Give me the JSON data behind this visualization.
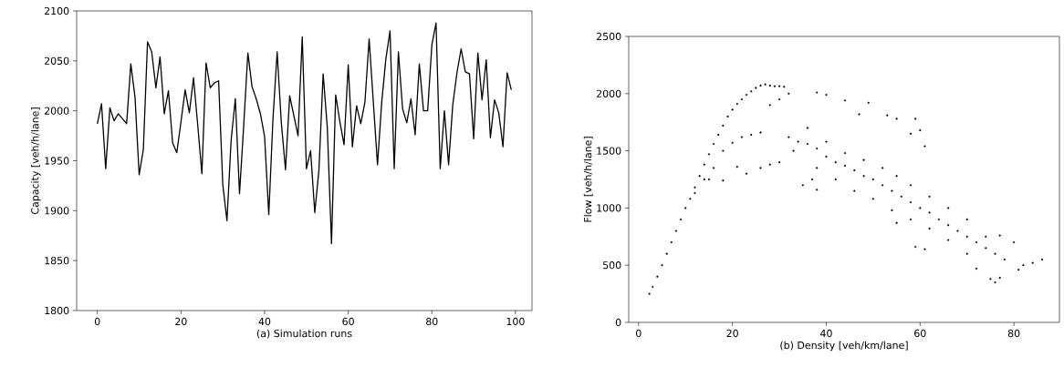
{
  "chart_data": [
    {
      "type": "line",
      "xlabel": "(a) Simulation runs",
      "ylabel": "Capacity [veh/h/lane]",
      "color": "#000000",
      "x": [
        0,
        1,
        2,
        3,
        4,
        5,
        6,
        7,
        8,
        9,
        10,
        11,
        12,
        13,
        14,
        15,
        16,
        17,
        18,
        19,
        20,
        21,
        22,
        23,
        24,
        25,
        26,
        27,
        28,
        29,
        30,
        31,
        32,
        33,
        34,
        35,
        36,
        37,
        38,
        39,
        40,
        41,
        42,
        43,
        44,
        45,
        46,
        47,
        48,
        49,
        50,
        51,
        52,
        53,
        54,
        55,
        56,
        57,
        58,
        59,
        60,
        61,
        62,
        63,
        64,
        65,
        66,
        67,
        68,
        69,
        70,
        71,
        72,
        73,
        74,
        75,
        76,
        77,
        78,
        79,
        80,
        81,
        82,
        83,
        84,
        85,
        86,
        87,
        88,
        89,
        90,
        91,
        92,
        93,
        94,
        95,
        96,
        97,
        98,
        99
      ],
      "values": [
        1987,
        2007,
        1942,
        2003,
        1990,
        1997,
        1992,
        1987,
        2047,
        2014,
        1936,
        1961,
        2069,
        2059,
        2023,
        2054,
        1997,
        2020,
        1968,
        1958,
        1989,
        2021,
        1998,
        2033,
        1986,
        1937,
        2048,
        2023,
        2028,
        2030,
        1926,
        1890,
        1971,
        2012,
        1917,
        1985,
        2058,
        2024,
        2012,
        1997,
        1974,
        1896,
        1992,
        2059,
        1988,
        1941,
        2015,
        1995,
        1975,
        2074,
        1942,
        1960,
        1898,
        1941,
        2037,
        1983,
        1867,
        2016,
        1989,
        1966,
        2046,
        1964,
        2005,
        1987,
        2009,
        2072,
        2009,
        1946,
        2008,
        2052,
        2080,
        1942,
        2059,
        2002,
        1988,
        2012,
        1976,
        2047,
        2000,
        2000,
        2066,
        2088,
        1942,
        2000,
        1946,
        2006,
        2038,
        2062,
        2039,
        2037,
        1972,
        2058,
        2011,
        2051,
        1973,
        2011,
        1998,
        1964,
        2038,
        2021
      ],
      "xlim": [
        -4.95,
        103.95
      ],
      "xticks": [
        0,
        20,
        40,
        60,
        80,
        100
      ],
      "ylim": [
        1800,
        2100
      ],
      "yticks": [
        1800,
        1850,
        1900,
        1950,
        2000,
        2050,
        2100
      ]
    },
    {
      "type": "scatter",
      "xlabel": "(b) Density [veh/km/lane]",
      "ylabel": "Flow [veh/h/lane]",
      "color": "#000000",
      "x": [
        2.3,
        3,
        4,
        5,
        6,
        7,
        8,
        9,
        10,
        11,
        12,
        13,
        14,
        15,
        16,
        17,
        18,
        19,
        20,
        21,
        22,
        23,
        24,
        25,
        26,
        27,
        28,
        29,
        30,
        31,
        12,
        14,
        16,
        18,
        20,
        22,
        24,
        26,
        28,
        30,
        15,
        18,
        21,
        23,
        26,
        28,
        30,
        33,
        35,
        37,
        38,
        32,
        34,
        36,
        38,
        40,
        42,
        44,
        46,
        48,
        50,
        52,
        54,
        56,
        58,
        60,
        62,
        64,
        66,
        68,
        70,
        72,
        74,
        76,
        78,
        36,
        40,
        44,
        48,
        52,
        55,
        58,
        62,
        66,
        70,
        74,
        77,
        38,
        42,
        46,
        50,
        54,
        58,
        62,
        66,
        70,
        72,
        75,
        76,
        77,
        32,
        38,
        40,
        44,
        49,
        47,
        53,
        55,
        59,
        61,
        60,
        58,
        80,
        81,
        82,
        84,
        86,
        59,
        61,
        55
      ],
      "values": [
        250,
        310,
        400,
        500,
        600,
        700,
        800,
        900,
        1000,
        1080,
        1180,
        1280,
        1380,
        1470,
        1560,
        1640,
        1720,
        1800,
        1860,
        1910,
        1950,
        1990,
        2020,
        2050,
        2070,
        2080,
        2070,
        2065,
        2065,
        2060,
        1130,
        1250,
        1350,
        1500,
        1570,
        1620,
        1640,
        1660,
        1900,
        1950,
        1250,
        1240,
        1360,
        1300,
        1350,
        1380,
        1400,
        1500,
        1200,
        1250,
        1160,
        1620,
        1580,
        1560,
        1520,
        1450,
        1400,
        1370,
        1330,
        1280,
        1250,
        1200,
        1150,
        1100,
        1050,
        1000,
        960,
        900,
        850,
        800,
        750,
        700,
        650,
        600,
        550,
        1700,
        1580,
        1480,
        1420,
        1350,
        1280,
        1200,
        1100,
        1000,
        900,
        750,
        760,
        1350,
        1250,
        1150,
        1080,
        980,
        900,
        820,
        720,
        600,
        470,
        380,
        350,
        390,
        2000,
        2010,
        1990,
        1940,
        1920,
        1820,
        1810,
        1780,
        1780,
        1540,
        1680,
        1650,
        700,
        460,
        500,
        520,
        550,
        660,
        640,
        870
      ],
      "xlim": [
        -2.1,
        89.7
      ],
      "xticks": [
        0,
        20,
        40,
        60,
        80
      ],
      "ylim": [
        0,
        2500
      ],
      "yticks": [
        0,
        500,
        1000,
        1500,
        2000,
        2500
      ]
    }
  ]
}
